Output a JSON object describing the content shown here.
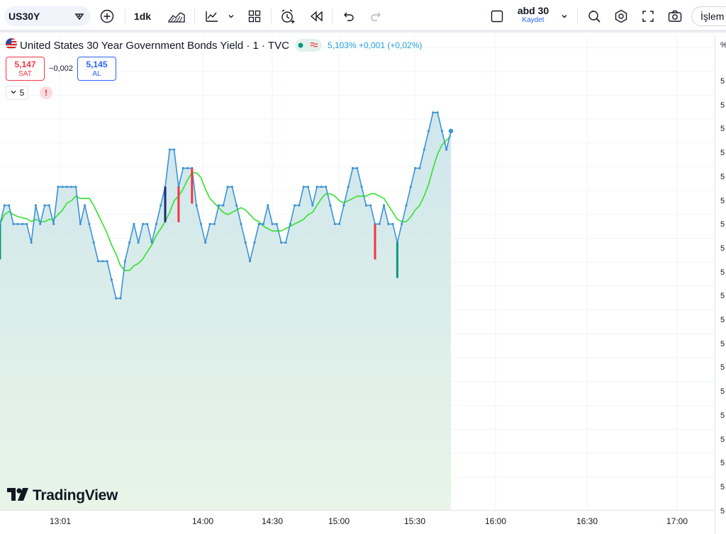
{
  "toolbar": {
    "symbol": "US30Y",
    "interval": "1dk",
    "layout_name": "abd 30",
    "save_label": "Kaydet",
    "trade_label": "İşlem"
  },
  "legend": {
    "title": "United States 30 Year Government Bonds Yield · 1 · TVC",
    "ohlc": "5,103% +0,001 (+0,02%)",
    "sell_price": "5,147",
    "sell_label": "SAT",
    "spread": "−0,002",
    "buy_price": "5,145",
    "buy_label": "AL",
    "indicator_count": "5",
    "warning": "!"
  },
  "brand": "TradingView",
  "price_scale": {
    "unit": "%",
    "labels": [
      "5",
      "5",
      "5",
      "5",
      "5",
      "5",
      "5",
      "5",
      "5",
      "5",
      "5",
      "5",
      "5",
      "5",
      "5",
      "5",
      "5",
      "5",
      "5"
    ]
  },
  "time_axis": {
    "labels": [
      "13:01",
      "14:00",
      "14:30",
      "15:00",
      "15:30",
      "16:00",
      "16:30",
      "17:00"
    ]
  },
  "colors": {
    "line": "#3a92d6",
    "ma": "#32e22a",
    "area_top": "#cfe6ec",
    "area_bottom": "#e6f3e6",
    "bar_up": "#089981",
    "bar_down": "#f23645",
    "bar_dark": "#1c2a7a"
  },
  "chart_data": {
    "type": "line",
    "x_start": "12:56",
    "x_step_minutes": 1,
    "ylim": [
      5.083,
      5.107
    ],
    "series": [
      {
        "values": [
          5.098,
          5.099,
          5.099,
          5.098,
          5.098,
          5.098,
          5.098,
          5.097,
          5.099,
          5.098,
          5.099,
          5.099,
          5.098,
          5.1,
          5.1,
          5.1,
          5.1,
          5.1,
          5.098,
          5.099,
          5.098,
          5.097,
          5.096,
          5.096,
          5.096,
          5.095,
          5.094,
          5.094,
          5.096,
          5.097,
          5.098,
          5.097,
          5.098,
          5.098,
          5.097,
          5.098,
          5.099,
          5.1,
          5.102,
          5.102,
          5.1,
          5.101,
          5.101,
          5.101,
          5.099,
          5.098,
          5.097,
          5.098,
          5.098,
          5.099,
          5.099,
          5.1,
          5.1,
          5.099,
          5.098,
          5.097,
          5.096,
          5.097,
          5.098,
          5.098,
          5.099,
          5.098,
          5.098,
          5.097,
          5.097,
          5.098,
          5.099,
          5.099,
          5.1,
          5.1,
          5.099,
          5.1,
          5.1,
          5.1,
          5.099,
          5.098,
          5.098,
          5.099,
          5.1,
          5.101,
          5.101,
          5.1,
          5.099,
          5.099,
          5.098,
          5.098,
          5.099,
          5.098,
          5.098,
          5.097,
          5.098,
          5.099,
          5.1,
          5.101,
          5.101,
          5.102,
          5.103,
          5.104,
          5.104,
          5.103,
          5.102,
          5.103
        ],
        "note_values_compressed": true
      }
    ]
  }
}
